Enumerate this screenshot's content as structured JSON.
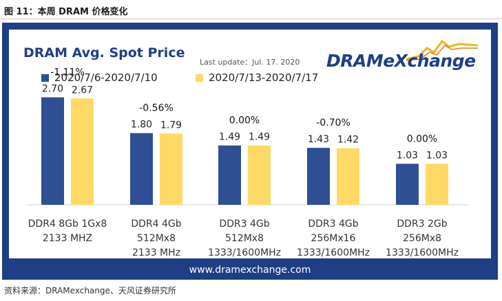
{
  "figure_title": "图 11：本周 DRAM 价格变化",
  "source_note": "资料来源：DRAMexchange、天风证券研究所",
  "header": {
    "chart_title": "DRAM Avg. Spot Price",
    "last_update": "Last update：Jul. 17. 2020",
    "logo_text": "DRAMeXchange",
    "website": "www.dramexchange.com"
  },
  "colors": {
    "series1": "#2e4f93",
    "series2": "#ffd966",
    "frame": "#1e3f86"
  },
  "chart_data": {
    "type": "bar",
    "title": "DRAM Avg. Spot Price",
    "categories": [
      [
        "DDR4 8Gb 1Gx8",
        "2133 MHZ"
      ],
      [
        "DDR4 4Gb",
        "512Mx8",
        "2133 MHz"
      ],
      [
        "DDR3 4Gb",
        "512Mx8",
        "1333/1600MHz"
      ],
      [
        "DDR3 4Gb",
        "256Mx16",
        "1333/1600MHz"
      ],
      [
        "DDR3 2Gb",
        "256Mx8",
        "1333/1600MHz"
      ]
    ],
    "series": [
      {
        "name": "2020/7/6-2020/7/10",
        "values": [
          2.7,
          1.8,
          1.49,
          1.43,
          1.03
        ],
        "labels": [
          "2.70",
          "1.80",
          "1.49",
          "1.43",
          "1.03"
        ]
      },
      {
        "name": "2020/7/13-2020/7/17",
        "values": [
          2.67,
          1.79,
          1.49,
          1.42,
          1.03
        ],
        "labels": [
          "2.67",
          "1.79",
          "1.49",
          "1.42",
          "1.03"
        ]
      }
    ],
    "change_labels": [
      "-1.11%",
      "-0.56%",
      "0.00%",
      "-0.70%",
      "0.00%"
    ],
    "ylim": [
      0,
      2.9
    ],
    "legend": "top-left",
    "grid": false
  }
}
